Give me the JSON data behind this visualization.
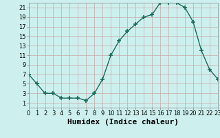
{
  "x": [
    0,
    1,
    2,
    3,
    4,
    5,
    6,
    7,
    8,
    9,
    10,
    11,
    12,
    13,
    14,
    15,
    16,
    17,
    18,
    19,
    20,
    21,
    22,
    23
  ],
  "y": [
    7,
    5,
    3,
    3,
    2,
    2,
    2,
    1.5,
    3,
    6,
    11,
    14,
    16,
    17.5,
    19,
    19.5,
    22,
    22,
    22,
    21,
    18,
    12,
    8,
    6
  ],
  "line_color": "#1a6b5a",
  "marker": "+",
  "marker_size": 4,
  "bg_color": "#cdf0ee",
  "grid_color": "#c8a8a8",
  "xlabel": "Humidex (Indice chaleur)",
  "xlabel_fontsize": 8,
  "xlim": [
    0,
    23
  ],
  "ylim": [
    0,
    22
  ],
  "yticks": [
    1,
    3,
    5,
    7,
    9,
    11,
    13,
    15,
    17,
    19,
    21
  ],
  "xticks": [
    0,
    1,
    2,
    3,
    4,
    5,
    6,
    7,
    8,
    9,
    10,
    11,
    12,
    13,
    14,
    15,
    16,
    17,
    18,
    19,
    20,
    21,
    22,
    23
  ],
  "tick_fontsize": 6,
  "fig_bg_color": "#cdf0ee",
  "linewidth": 1.0,
  "marker_color": "#1a6b5a"
}
